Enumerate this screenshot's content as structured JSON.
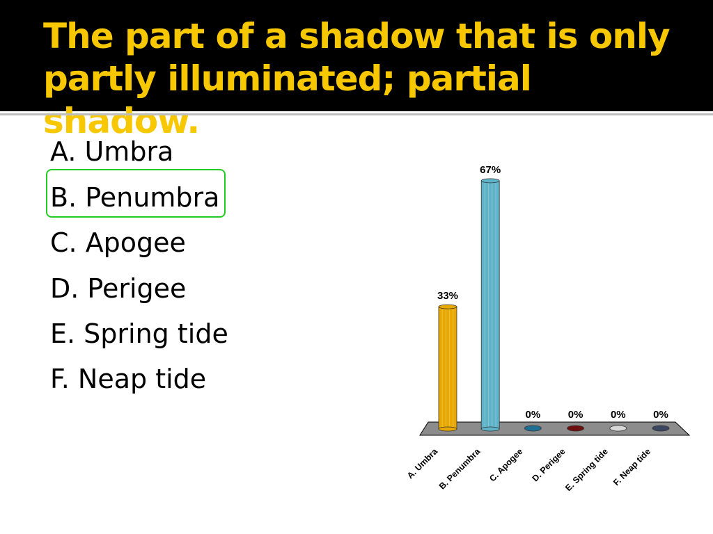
{
  "slide": {
    "title": "The part of a shadow that is only partly illuminated; partial shadow.",
    "answers": [
      "A. Umbra",
      "B. Penumbra",
      "C. Apogee",
      "D. Perigee",
      "E. Spring tide",
      "F. Neap tide"
    ],
    "highlighted_answer": "B. Penumbra",
    "colors": {
      "title": "#f7c700",
      "highlight": "#22cc22",
      "background_band": "#000000"
    }
  },
  "chart_data": {
    "type": "bar",
    "style": "3d-cylinder",
    "categories": [
      "A. Umbra",
      "B. Penumbra",
      "C. Apogee",
      "D. Perigee",
      "E. Spring tide",
      "F. Neap tide"
    ],
    "values": [
      33,
      67,
      0,
      0,
      0,
      0
    ],
    "data_labels": [
      "33%",
      "67%",
      "0%",
      "0%",
      "0%",
      "0%"
    ],
    "colors": [
      "#e8a800",
      "#5fb3c9",
      "#1f6f93",
      "#6b0f0f",
      "#d8d8d8",
      "#3a4560"
    ],
    "ylim": [
      0,
      100
    ],
    "grid": false,
    "legend": "none"
  }
}
